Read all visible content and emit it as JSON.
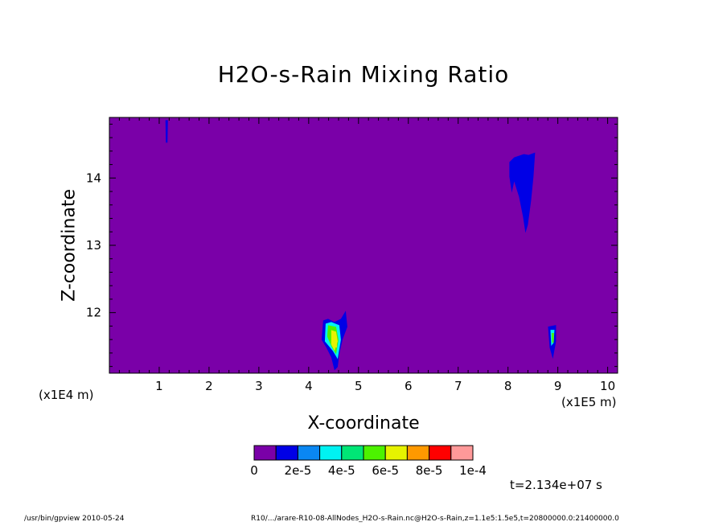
{
  "chart_data": {
    "type": "heatmap",
    "title": "H2O-s-Rain Mixing Ratio",
    "xlabel": "X-coordinate",
    "ylabel": "Z-coordinate",
    "x_unit_label": "(x1E5 m)",
    "y_unit_label": "(x1E4 m)",
    "xlim": [
      0,
      10.2
    ],
    "ylim": [
      11.1,
      14.9
    ],
    "x_ticks": [
      1,
      2,
      3,
      4,
      5,
      6,
      7,
      8,
      9,
      10
    ],
    "y_ticks": [
      12,
      13,
      14
    ],
    "x_tick_labels": [
      "1",
      "2",
      "3",
      "4",
      "5",
      "6",
      "7",
      "8",
      "9",
      "10"
    ],
    "y_tick_labels": [
      "12",
      "13",
      "14"
    ],
    "background_value": 0,
    "colorbar": {
      "colors": [
        "#7a00a8",
        "#0000e6",
        "#0a87f2",
        "#00f2f2",
        "#00e676",
        "#4cf200",
        "#e6f200",
        "#ff9900",
        "#ff0000",
        "#ff9999"
      ],
      "tick_labels": [
        "0",
        "2e-5",
        "4e-5",
        "6e-5",
        "8e-5",
        "1e-4"
      ],
      "tick_values": [
        0,
        2e-05,
        4e-05,
        6e-05,
        8e-05,
        0.0001
      ]
    },
    "features": [
      {
        "x": 1.15,
        "z": 14.68,
        "value": 1e-05
      },
      {
        "x": 8.35,
        "z": 13.9,
        "value": 1e-05
      },
      {
        "x": 4.55,
        "z": 11.55,
        "value": 7e-05
      },
      {
        "x": 8.9,
        "z": 11.6,
        "value": 5e-05
      }
    ]
  },
  "annotations": {
    "time": "t=2.134e+07 s",
    "footer_left": "/usr/bin/gpview   2010-05-24",
    "footer_right": "R10/.../arare-R10-08-AllNodes_H2O-s-Rain.nc@H2O-s-Rain,z=1.1e5:1.5e5,t=20800000.0:21400000.0"
  }
}
